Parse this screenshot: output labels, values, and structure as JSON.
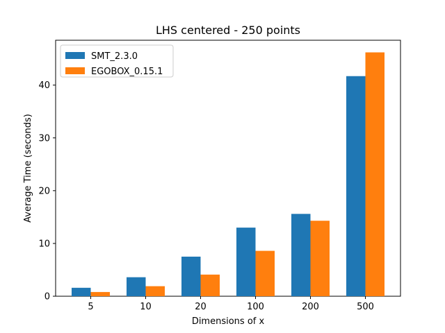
{
  "chart_data": {
    "type": "bar",
    "title": "LHS centered - 250 points",
    "xlabel": "Dimensions of x",
    "ylabel": "Average Time (seconds)",
    "categories": [
      "5",
      "10",
      "20",
      "100",
      "200",
      "500"
    ],
    "series": [
      {
        "name": "SMT_2.3.0",
        "color": "#1f77b4",
        "values": [
          1.6,
          3.6,
          7.5,
          13.0,
          15.6,
          41.7
        ]
      },
      {
        "name": "EGOBOX_0.15.1",
        "color": "#ff7f0e",
        "values": [
          0.8,
          1.9,
          4.1,
          8.6,
          14.3,
          46.2
        ]
      }
    ],
    "ylim": [
      0,
      48.5
    ],
    "yticks": [
      0,
      10,
      20,
      30,
      40
    ],
    "grid": false,
    "legend_position": "top-left"
  }
}
